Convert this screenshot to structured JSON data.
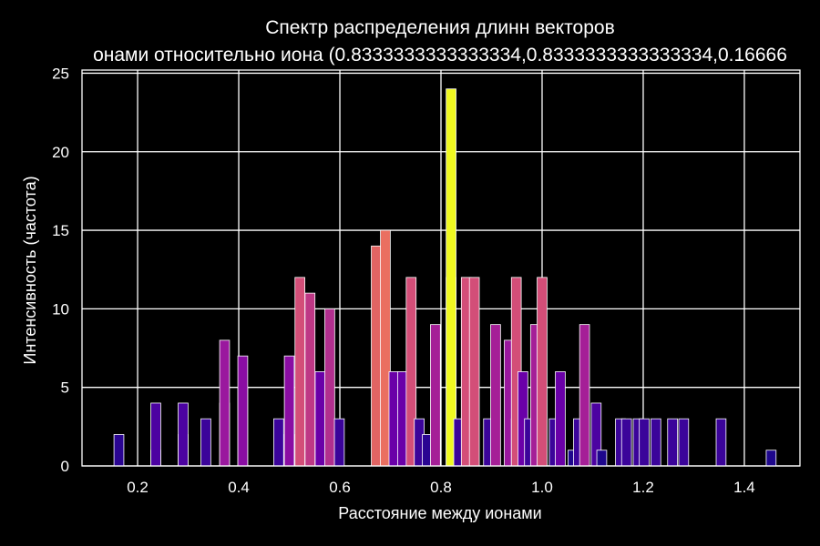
{
  "chart_data": {
    "type": "bar",
    "title": "Спектр распределения длинн векторов",
    "subtitle": "онами относительно иона (0.8333333333333334,0.8333333333333334,0.16666",
    "xlabel": "Расстояние между ионами",
    "ylabel": "Интенсивность (частота)",
    "xlim": [
      0.09,
      1.51
    ],
    "ylim": [
      0,
      25.2
    ],
    "xticks": [
      "0.2",
      "0.4",
      "0.6",
      "0.8",
      "1.0",
      "1.2",
      "1.4"
    ],
    "xtick_values": [
      0.2,
      0.4,
      0.6,
      0.8,
      1.0,
      1.2,
      1.4
    ],
    "yticks": [
      "0",
      "5",
      "10",
      "15",
      "20",
      "25"
    ],
    "ytick_values": [
      0,
      5,
      10,
      15,
      20,
      25
    ],
    "grid": true,
    "bar_width": 0.0195,
    "colormap": "plasma",
    "background": "#000000",
    "series": [
      {
        "x": [
          0.163,
          0.236,
          0.236,
          0.29,
          0.29,
          0.335,
          0.372,
          0.372,
          0.408,
          0.408,
          0.479,
          0.5,
          0.5,
          0.521,
          0.541,
          0.541,
          0.561,
          0.58,
          0.599,
          0.672,
          0.69,
          0.707,
          0.724,
          0.741,
          0.757,
          0.773,
          0.789,
          0.82,
          0.82,
          0.835,
          0.85,
          0.866,
          0.894,
          0.908,
          0.935,
          0.949,
          0.949,
          0.962,
          0.975,
          0.987,
          1.0,
          1.024,
          1.036,
          1.061,
          1.072,
          1.084,
          1.107,
          1.118,
          1.155,
          1.167,
          1.19,
          1.202,
          1.225,
          1.258,
          1.28,
          1.354,
          1.453
        ],
        "values": [
          2,
          1,
          4,
          2,
          4,
          3,
          4,
          8,
          5,
          7,
          3,
          2,
          7,
          12,
          1,
          11,
          6,
          10,
          3,
          14,
          15,
          6,
          6,
          12,
          3,
          2,
          9,
          12,
          24,
          3,
          12,
          12,
          3,
          9,
          8,
          3,
          12,
          6,
          3,
          9,
          12,
          3,
          6,
          1,
          3,
          9,
          4,
          1,
          3,
          3,
          3,
          3,
          3,
          3,
          3,
          3,
          1
        ],
        "colors": [
          "#2a0592",
          "#1e078c",
          "#4c02a1",
          "#2a0592",
          "#4c02a1",
          "#3b049a",
          "#4c02a1",
          "#9a189e",
          "#5b01a4",
          "#8a0da3",
          "#3b049a",
          "#2a0592",
          "#8a0da3",
          "#d34e78",
          "#1e078c",
          "#be3885",
          "#6a00a8",
          "#b12f8e",
          "#3b049a",
          "#e16463",
          "#ea6f60",
          "#6a00a8",
          "#6a00a8",
          "#d34e78",
          "#3b049a",
          "#2a0592",
          "#a51f97",
          "#d34e78",
          "#f0f921",
          "#3b049a",
          "#d34e78",
          "#d34e78",
          "#3b049a",
          "#a51f97",
          "#9a189e",
          "#3b049a",
          "#d34e78",
          "#6a00a8",
          "#3b049a",
          "#a51f97",
          "#d34e78",
          "#3b049a",
          "#6a00a8",
          "#1e078c",
          "#3b049a",
          "#a51f97",
          "#4c02a1",
          "#1e078c",
          "#3b049a",
          "#3b049a",
          "#3b049a",
          "#3b049a",
          "#3b049a",
          "#3b049a",
          "#3b049a",
          "#3b049a",
          "#1e078c"
        ]
      }
    ]
  }
}
